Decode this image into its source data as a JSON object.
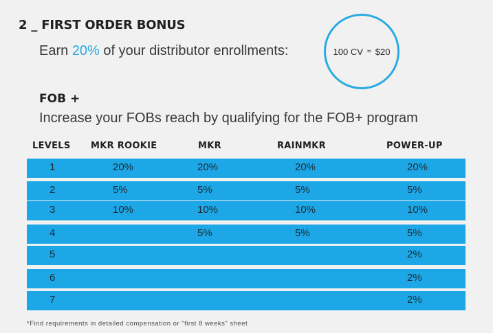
{
  "section": {
    "number_title": "2 _ FIRST ORDER BONUS"
  },
  "earn": {
    "prefix": "Earn ",
    "percent": "20%",
    "suffix": " of your distributor enrollments:"
  },
  "cv_bubble": {
    "cv": "100 CV",
    "eq": "=",
    "amount": "$20"
  },
  "fob_plus": {
    "title": "FOB +",
    "description": "Increase your FOBs reach by qualifying for the FOB+ program"
  },
  "table": {
    "headers": [
      "LEVELS",
      "MKR ROOKIE",
      "MKR",
      "RAINMKR",
      "POWER-UP"
    ],
    "rows": [
      [
        "1",
        "20%",
        "20%",
        "20%",
        "20%"
      ],
      [
        "2",
        "5%",
        "5%",
        "5%",
        "5%"
      ],
      [
        "3",
        "10%",
        "10%",
        "10%",
        "10%"
      ],
      [
        "4",
        "",
        "5%",
        "5%",
        "5%"
      ],
      [
        "5",
        "",
        "",
        "",
        "2%"
      ],
      [
        "6",
        "",
        "",
        "",
        "2%"
      ],
      [
        "7",
        "",
        "",
        "",
        "2%"
      ]
    ]
  },
  "footnote": "*Find requirements in detailed compensation or \"first 8 weeks\" sheet",
  "colors": {
    "accent": "#29abe2",
    "row_fill": "#1da7e6",
    "background": "#f1f1f2"
  }
}
